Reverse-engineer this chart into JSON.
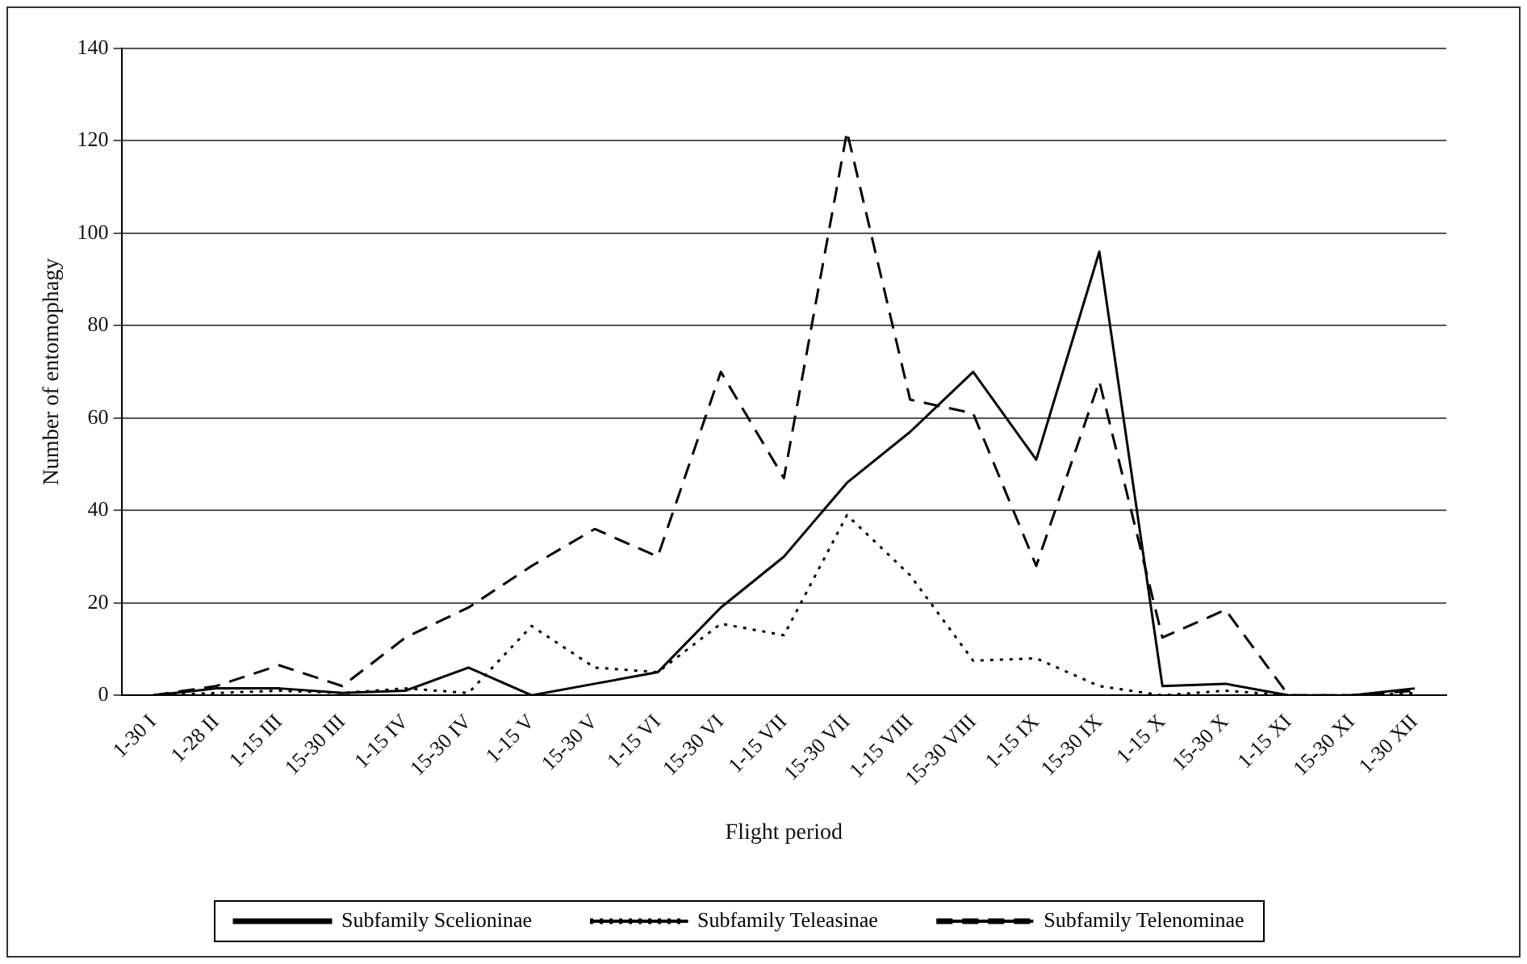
{
  "chart_data": {
    "type": "line",
    "xlabel": "Flight period",
    "ylabel": "Number of entomophagy",
    "categories": [
      "1-30 I",
      "1-28 II",
      "1-15 III",
      "15-30 III",
      "1-15 IV",
      "15-30 IV",
      "1-15 V",
      "15-30 V",
      "1-15 VI",
      "15-30 VI",
      "1-15 VII",
      "15-30 VII",
      "1-15 VIII",
      "15-30 VIII",
      "1-15 IX",
      "15-30 IX",
      "1-15 X",
      "15-30 X",
      "1-15 XI",
      "15-30 XI",
      "1-30 XII"
    ],
    "series": [
      {
        "name": "Subfamily Scelioninae",
        "color": "#000000",
        "line_style": "solid",
        "values": [
          0,
          1.5,
          1.5,
          0.5,
          1,
          6,
          0,
          2.5,
          5,
          19,
          30,
          46,
          57,
          70,
          51,
          96,
          2,
          2.5,
          0,
          0,
          1.5
        ]
      },
      {
        "name": "Subfamily Teleasinae",
        "color": "#000000",
        "line_style": "dotted",
        "values": [
          0,
          0.5,
          1,
          0.5,
          1.5,
          0.5,
          15,
          6,
          5,
          15.5,
          13,
          39,
          26,
          7.5,
          8,
          2,
          0,
          1,
          0,
          0,
          0.5
        ]
      },
      {
        "name": "Subfamily Telenominae",
        "color": "#000000",
        "line_style": "dashed",
        "values": [
          0,
          2,
          6.5,
          2,
          12.5,
          19,
          28,
          36,
          30,
          70,
          47,
          122,
          64,
          61,
          28,
          68,
          12.5,
          18.5,
          0,
          0,
          1
        ]
      }
    ],
    "ylim": [
      0,
      140
    ],
    "yticks": [
      0,
      20,
      40,
      60,
      80,
      100,
      120,
      140
    ],
    "grid": "y",
    "legend": "bottom",
    "marker": "none"
  }
}
